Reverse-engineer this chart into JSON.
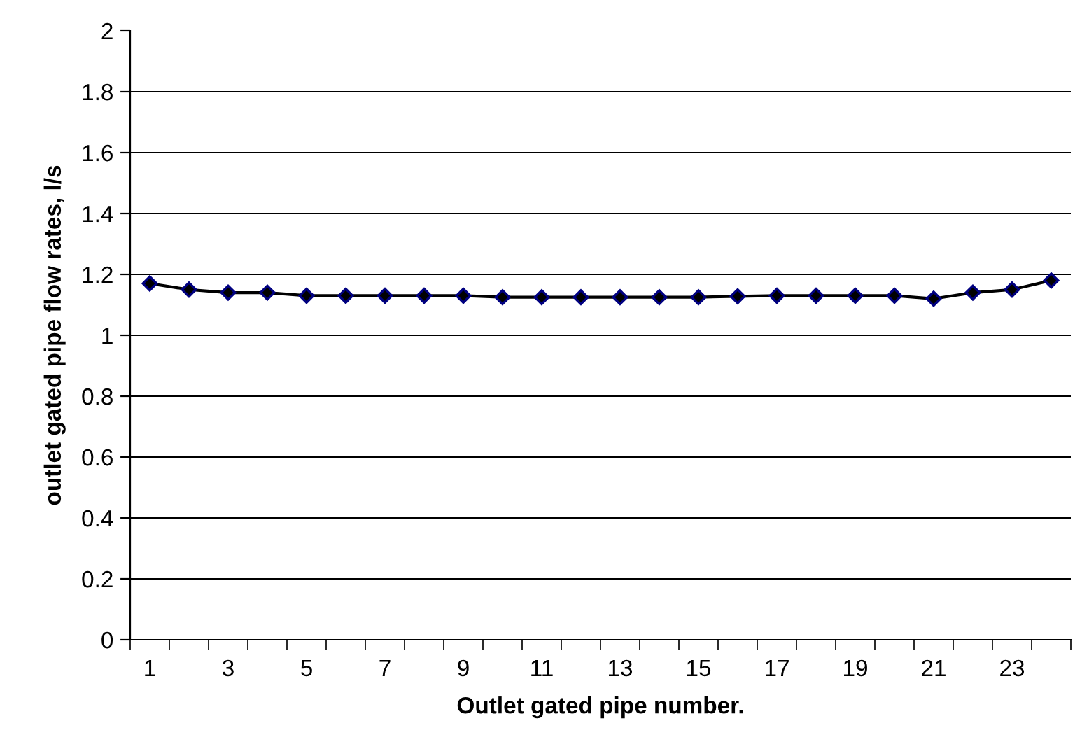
{
  "chart_data": {
    "type": "line",
    "categories": [
      "1",
      null,
      "3",
      null,
      "5",
      null,
      "7",
      null,
      "9",
      null,
      "11",
      null,
      "13",
      null,
      "15",
      null,
      "17",
      null,
      "19",
      null,
      "21",
      null,
      "23",
      null
    ],
    "series": [
      {
        "color": "#000080",
        "values": [
          1.17,
          1.15,
          1.14,
          1.14,
          1.13,
          1.13,
          1.13,
          1.13,
          1.13,
          1.125,
          1.125,
          1.125,
          1.125,
          1.125,
          1.125,
          1.128,
          1.13,
          1.13,
          1.13,
          1.13,
          1.12,
          1.14,
          1.15,
          1.18
        ]
      }
    ],
    "xlabel": "Outlet gated pipe number.",
    "ylabel": "outlet gated pipe flow rates, l/s",
    "ylim": [
      0,
      2
    ],
    "yticks": [
      0,
      0.2,
      0.4,
      0.6,
      0.8,
      1,
      1.2,
      1.4,
      1.6,
      1.8,
      2
    ],
    "grid": "y",
    "marker": "diamond",
    "line_style": "solid"
  }
}
